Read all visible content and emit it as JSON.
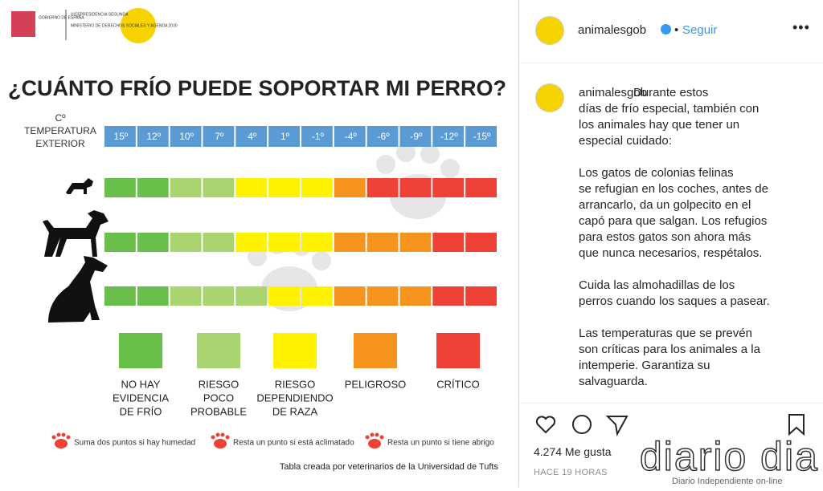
{
  "infographic": {
    "header_logos": [
      "GOBIERNO DE ESPAÑA",
      "VICEPRESIDENCIA SEGUNDA",
      "MINISTERIO DE DERECHOS SOCIALES Y AGENDA 2030"
    ],
    "title": "¿CUÁNTO FRÍO PUEDE SOPORTAR MI PERRO?",
    "axis_label": [
      "Cº",
      "TEMPERATURA",
      "EXTERIOR"
    ],
    "temperatures": [
      "15º",
      "12º",
      "10º",
      "7º",
      "4º",
      "1º",
      "-1º",
      "-4º",
      "-6º",
      "-9º",
      "-12º",
      "-15º"
    ],
    "rows": [
      {
        "colors": [
          "#6abf4b",
          "#6abf4b",
          "#a9d46f",
          "#a9d46f",
          "#fff200",
          "#fff200",
          "#fff200",
          "#f7941d",
          "#ef4136",
          "#ef4136",
          "#ef4136",
          "#ef4136"
        ]
      },
      {
        "colors": [
          "#6abf4b",
          "#6abf4b",
          "#a9d46f",
          "#a9d46f",
          "#fff200",
          "#fff200",
          "#fff200",
          "#f7941d",
          "#f7941d",
          "#f7941d",
          "#ef4136",
          "#ef4136"
        ]
      },
      {
        "colors": [
          "#6abf4b",
          "#6abf4b",
          "#a9d46f",
          "#a9d46f",
          "#a9d46f",
          "#fff200",
          "#fff200",
          "#f7941d",
          "#f7941d",
          "#f7941d",
          "#ef4136",
          "#ef4136"
        ]
      }
    ],
    "legend": [
      {
        "color": "#6abf4b",
        "label": [
          "NO HAY",
          "EVIDENCIA",
          "DE FRÍO"
        ]
      },
      {
        "color": "#a9d46f",
        "label": [
          "RIESGO",
          "POCO",
          "PROBABLE"
        ]
      },
      {
        "color": "#fff200",
        "label": [
          "RIESGO",
          "DEPENDIENDO",
          "DE RAZA"
        ]
      },
      {
        "color": "#f7941d",
        "label": [
          "PELIGROSO"
        ]
      },
      {
        "color": "#ef4136",
        "label": [
          "CRÍTICO"
        ]
      }
    ],
    "notes": [
      "Suma dos puntos si hay humedad",
      "Resta un punto si está aclimatado",
      "Resta un punto si tiene abrigo"
    ],
    "credit": "Tabla creada por veterinarios de la Universidad de Tufts"
  },
  "post": {
    "username": "animalesgob",
    "separator": "•",
    "follow": "Seguir",
    "caption": [
      [
        "Durante estos",
        "días de frío especial, también con",
        "los animales hay que tener un",
        "especial cuidado:"
      ],
      [
        "Los gatos de colonias felinas",
        "se refugian en los coches, antes de",
        "arrancarlo, da un golpecito en el",
        "capó para que salgan. Los refugios",
        "para estos gatos son ahora más",
        "que nunca necesarios, respétalos."
      ],
      [
        "Cuida las almohadillas de los",
        "perros cuando los saques a pasear."
      ],
      [
        "Las temperaturas que se prevén",
        "son críticas para los animales a la",
        "intemperie. Garantiza su",
        "salvaguarda."
      ]
    ],
    "likes": "4.274 Me gusta",
    "time": "HACE 19 HORAS"
  },
  "watermark": {
    "name": "diario dia",
    "tagline": "Diario Independiente on-line"
  }
}
